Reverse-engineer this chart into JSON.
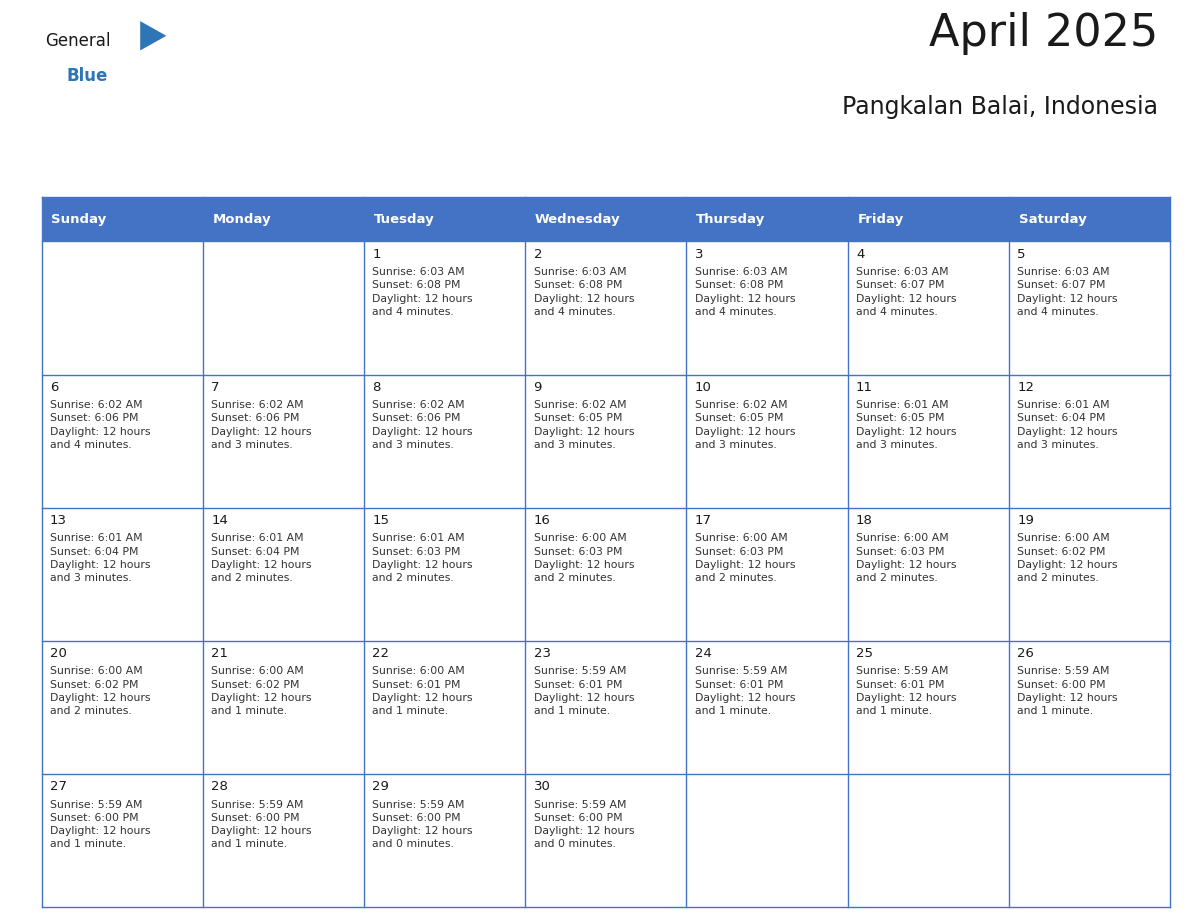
{
  "title": "April 2025",
  "subtitle": "Pangkalan Balai, Indonesia",
  "header_bg_color": "#4472C4",
  "header_text_color": "#FFFFFF",
  "day_headers": [
    "Sunday",
    "Monday",
    "Tuesday",
    "Wednesday",
    "Thursday",
    "Friday",
    "Saturday"
  ],
  "grid_color": "#4472C4",
  "title_color": "#1a1a1a",
  "subtitle_color": "#1a1a1a",
  "day_num_color": "#1a1a1a",
  "cell_text_color": "#333333",
  "logo_general_color": "#1a1a1a",
  "logo_blue_color": "#2E75B6",
  "weeks": [
    [
      {
        "day": null,
        "info": ""
      },
      {
        "day": null,
        "info": ""
      },
      {
        "day": 1,
        "info": "Sunrise: 6:03 AM\nSunset: 6:08 PM\nDaylight: 12 hours\nand 4 minutes."
      },
      {
        "day": 2,
        "info": "Sunrise: 6:03 AM\nSunset: 6:08 PM\nDaylight: 12 hours\nand 4 minutes."
      },
      {
        "day": 3,
        "info": "Sunrise: 6:03 AM\nSunset: 6:08 PM\nDaylight: 12 hours\nand 4 minutes."
      },
      {
        "day": 4,
        "info": "Sunrise: 6:03 AM\nSunset: 6:07 PM\nDaylight: 12 hours\nand 4 minutes."
      },
      {
        "day": 5,
        "info": "Sunrise: 6:03 AM\nSunset: 6:07 PM\nDaylight: 12 hours\nand 4 minutes."
      }
    ],
    [
      {
        "day": 6,
        "info": "Sunrise: 6:02 AM\nSunset: 6:06 PM\nDaylight: 12 hours\nand 4 minutes."
      },
      {
        "day": 7,
        "info": "Sunrise: 6:02 AM\nSunset: 6:06 PM\nDaylight: 12 hours\nand 3 minutes."
      },
      {
        "day": 8,
        "info": "Sunrise: 6:02 AM\nSunset: 6:06 PM\nDaylight: 12 hours\nand 3 minutes."
      },
      {
        "day": 9,
        "info": "Sunrise: 6:02 AM\nSunset: 6:05 PM\nDaylight: 12 hours\nand 3 minutes."
      },
      {
        "day": 10,
        "info": "Sunrise: 6:02 AM\nSunset: 6:05 PM\nDaylight: 12 hours\nand 3 minutes."
      },
      {
        "day": 11,
        "info": "Sunrise: 6:01 AM\nSunset: 6:05 PM\nDaylight: 12 hours\nand 3 minutes."
      },
      {
        "day": 12,
        "info": "Sunrise: 6:01 AM\nSunset: 6:04 PM\nDaylight: 12 hours\nand 3 minutes."
      }
    ],
    [
      {
        "day": 13,
        "info": "Sunrise: 6:01 AM\nSunset: 6:04 PM\nDaylight: 12 hours\nand 3 minutes."
      },
      {
        "day": 14,
        "info": "Sunrise: 6:01 AM\nSunset: 6:04 PM\nDaylight: 12 hours\nand 2 minutes."
      },
      {
        "day": 15,
        "info": "Sunrise: 6:01 AM\nSunset: 6:03 PM\nDaylight: 12 hours\nand 2 minutes."
      },
      {
        "day": 16,
        "info": "Sunrise: 6:00 AM\nSunset: 6:03 PM\nDaylight: 12 hours\nand 2 minutes."
      },
      {
        "day": 17,
        "info": "Sunrise: 6:00 AM\nSunset: 6:03 PM\nDaylight: 12 hours\nand 2 minutes."
      },
      {
        "day": 18,
        "info": "Sunrise: 6:00 AM\nSunset: 6:03 PM\nDaylight: 12 hours\nand 2 minutes."
      },
      {
        "day": 19,
        "info": "Sunrise: 6:00 AM\nSunset: 6:02 PM\nDaylight: 12 hours\nand 2 minutes."
      }
    ],
    [
      {
        "day": 20,
        "info": "Sunrise: 6:00 AM\nSunset: 6:02 PM\nDaylight: 12 hours\nand 2 minutes."
      },
      {
        "day": 21,
        "info": "Sunrise: 6:00 AM\nSunset: 6:02 PM\nDaylight: 12 hours\nand 1 minute."
      },
      {
        "day": 22,
        "info": "Sunrise: 6:00 AM\nSunset: 6:01 PM\nDaylight: 12 hours\nand 1 minute."
      },
      {
        "day": 23,
        "info": "Sunrise: 5:59 AM\nSunset: 6:01 PM\nDaylight: 12 hours\nand 1 minute."
      },
      {
        "day": 24,
        "info": "Sunrise: 5:59 AM\nSunset: 6:01 PM\nDaylight: 12 hours\nand 1 minute."
      },
      {
        "day": 25,
        "info": "Sunrise: 5:59 AM\nSunset: 6:01 PM\nDaylight: 12 hours\nand 1 minute."
      },
      {
        "day": 26,
        "info": "Sunrise: 5:59 AM\nSunset: 6:00 PM\nDaylight: 12 hours\nand 1 minute."
      }
    ],
    [
      {
        "day": 27,
        "info": "Sunrise: 5:59 AM\nSunset: 6:00 PM\nDaylight: 12 hours\nand 1 minute."
      },
      {
        "day": 28,
        "info": "Sunrise: 5:59 AM\nSunset: 6:00 PM\nDaylight: 12 hours\nand 1 minute."
      },
      {
        "day": 29,
        "info": "Sunrise: 5:59 AM\nSunset: 6:00 PM\nDaylight: 12 hours\nand 0 minutes."
      },
      {
        "day": 30,
        "info": "Sunrise: 5:59 AM\nSunset: 6:00 PM\nDaylight: 12 hours\nand 0 minutes."
      },
      {
        "day": null,
        "info": ""
      },
      {
        "day": null,
        "info": ""
      },
      {
        "day": null,
        "info": ""
      }
    ]
  ]
}
